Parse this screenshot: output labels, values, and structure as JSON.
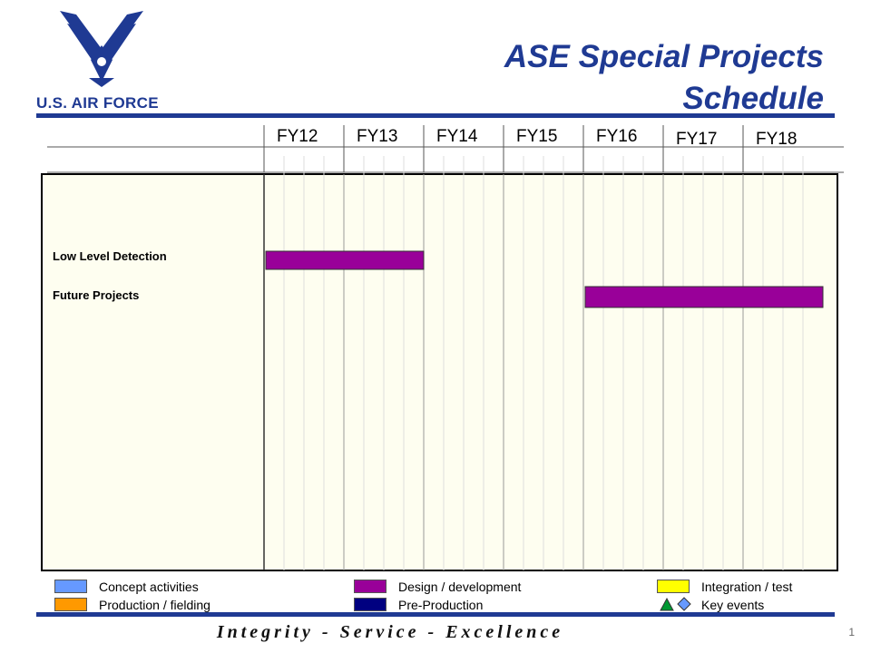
{
  "header": {
    "title_line1": "ASE Special Projects",
    "title_line2": "Schedule",
    "brand": "U.S. AIR FORCE"
  },
  "colors": {
    "brand_blue": "#1f3a93",
    "plot_bg": "#fefef0",
    "design": "#990099",
    "concept": "#6699ff",
    "production": "#ff9900",
    "integration": "#ffff00",
    "preproduction": "#000080",
    "event_triangle": "#009933",
    "event_diamond": "#6699ff"
  },
  "chart_data": {
    "type": "gantt",
    "title": "ASE Special Projects Schedule",
    "fiscal_years": [
      "FY12",
      "FY13",
      "FY14",
      "FY15",
      "FY16",
      "FY17",
      "FY18"
    ],
    "x_start": 2012,
    "x_end": 2019,
    "tasks": [
      {
        "label": "Low Level Detection",
        "start": 2012,
        "end": 2014,
        "phase": "design"
      },
      {
        "label": "Future Projects",
        "start": 2016,
        "end": 2019,
        "phase": "design"
      }
    ],
    "legend": [
      {
        "key": "concept",
        "label": "Concept activities"
      },
      {
        "key": "production",
        "label": "Production / fielding"
      },
      {
        "key": "design",
        "label": "Design / development"
      },
      {
        "key": "preproduction",
        "label": "Pre-Production"
      },
      {
        "key": "integration",
        "label": "Integration  / test"
      },
      {
        "key": "events",
        "label": "Key events"
      }
    ]
  },
  "footer": {
    "motto": "Integrity - Service - Excellence",
    "page_number": "1"
  }
}
